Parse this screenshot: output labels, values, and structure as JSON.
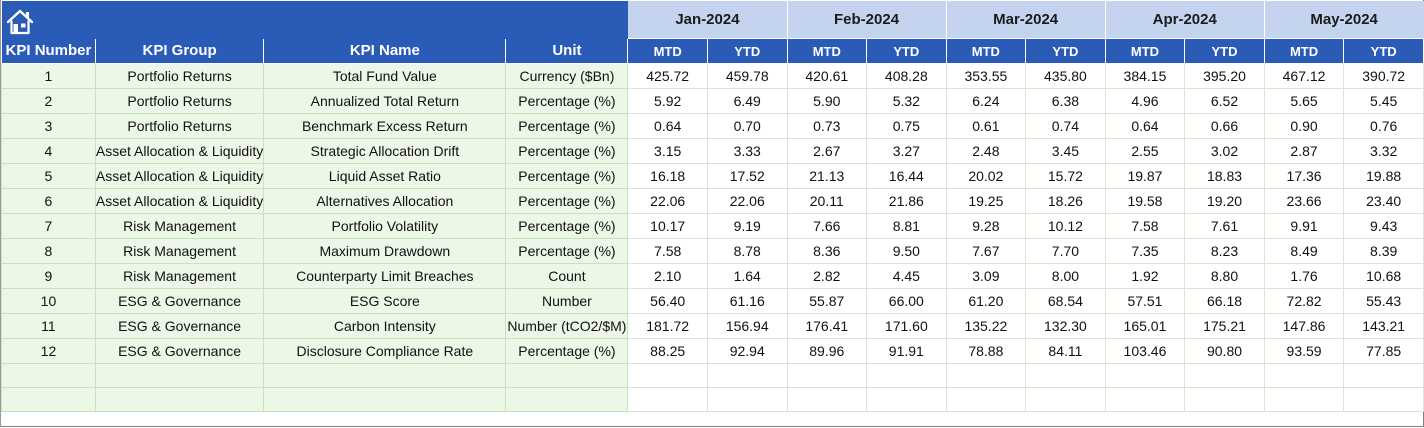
{
  "nav": {
    "home_icon": "home-icon"
  },
  "months": [
    "Jan-2024",
    "Feb-2024",
    "Mar-2024",
    "Apr-2024",
    "May-2024"
  ],
  "headers": {
    "kpi_number": "KPI Number",
    "kpi_group": "KPI Group",
    "kpi_name": "KPI Name",
    "unit": "Unit",
    "mtd": "MTD",
    "ytd": "YTD"
  },
  "colors": {
    "header_blue": "#2a5bb7",
    "month_band": "#c5d4ee",
    "kpi_cell_green": "#ecf7e7",
    "grid_line_green": "#c8e2bd"
  },
  "rows": [
    {
      "num": "1",
      "group": "Portfolio Returns",
      "name": "Total Fund Value",
      "unit": "Currency ($Bn)",
      "values": [
        "425.72",
        "459.78",
        "420.61",
        "408.28",
        "353.55",
        "435.80",
        "384.15",
        "395.20",
        "467.12",
        "390.72"
      ]
    },
    {
      "num": "2",
      "group": "Portfolio Returns",
      "name": "Annualized Total Return",
      "unit": "Percentage (%)",
      "values": [
        "5.92",
        "6.49",
        "5.90",
        "5.32",
        "6.24",
        "6.38",
        "4.96",
        "6.52",
        "5.65",
        "5.45"
      ]
    },
    {
      "num": "3",
      "group": "Portfolio Returns",
      "name": "Benchmark Excess Return",
      "unit": "Percentage (%)",
      "values": [
        "0.64",
        "0.70",
        "0.73",
        "0.75",
        "0.61",
        "0.74",
        "0.64",
        "0.66",
        "0.90",
        "0.76"
      ]
    },
    {
      "num": "4",
      "group": "Asset Allocation & Liquidity",
      "name": "Strategic Allocation Drift",
      "unit": "Percentage (%)",
      "values": [
        "3.15",
        "3.33",
        "2.67",
        "3.27",
        "2.48",
        "3.45",
        "2.55",
        "3.02",
        "2.87",
        "3.32"
      ]
    },
    {
      "num": "5",
      "group": "Asset Allocation & Liquidity",
      "name": "Liquid Asset Ratio",
      "unit": "Percentage (%)",
      "values": [
        "16.18",
        "17.52",
        "21.13",
        "16.44",
        "20.02",
        "15.72",
        "19.87",
        "18.83",
        "17.36",
        "19.88"
      ]
    },
    {
      "num": "6",
      "group": "Asset Allocation & Liquidity",
      "name": "Alternatives Allocation",
      "unit": "Percentage (%)",
      "values": [
        "22.06",
        "22.06",
        "20.11",
        "21.86",
        "19.25",
        "18.26",
        "19.58",
        "19.20",
        "23.66",
        "23.40"
      ]
    },
    {
      "num": "7",
      "group": "Risk Management",
      "name": "Portfolio Volatility",
      "unit": "Percentage (%)",
      "values": [
        "10.17",
        "9.19",
        "7.66",
        "8.81",
        "9.28",
        "10.12",
        "7.58",
        "7.61",
        "9.91",
        "9.43"
      ]
    },
    {
      "num": "8",
      "group": "Risk Management",
      "name": "Maximum Drawdown",
      "unit": "Percentage (%)",
      "values": [
        "7.58",
        "8.78",
        "8.36",
        "9.50",
        "7.67",
        "7.70",
        "7.35",
        "8.23",
        "8.49",
        "8.39"
      ]
    },
    {
      "num": "9",
      "group": "Risk Management",
      "name": "Counterparty Limit Breaches",
      "unit": "Count",
      "values": [
        "2.10",
        "1.64",
        "2.82",
        "4.45",
        "3.09",
        "8.00",
        "1.92",
        "8.80",
        "1.76",
        "10.68"
      ]
    },
    {
      "num": "10",
      "group": "ESG & Governance",
      "name": "ESG Score",
      "unit": "Number",
      "values": [
        "56.40",
        "61.16",
        "55.87",
        "66.00",
        "61.20",
        "68.54",
        "57.51",
        "66.18",
        "72.82",
        "55.43"
      ]
    },
    {
      "num": "11",
      "group": "ESG & Governance",
      "name": "Carbon Intensity",
      "unit": "Number (tCO2/$M)",
      "values": [
        "181.72",
        "156.94",
        "176.41",
        "171.60",
        "135.22",
        "132.30",
        "165.01",
        "175.21",
        "147.86",
        "143.21"
      ]
    },
    {
      "num": "12",
      "group": "ESG & Governance",
      "name": "Disclosure Compliance Rate",
      "unit": "Percentage (%)",
      "values": [
        "88.25",
        "92.94",
        "89.96",
        "91.91",
        "78.88",
        "84.11",
        "103.46",
        "90.80",
        "93.59",
        "77.85"
      ]
    }
  ]
}
